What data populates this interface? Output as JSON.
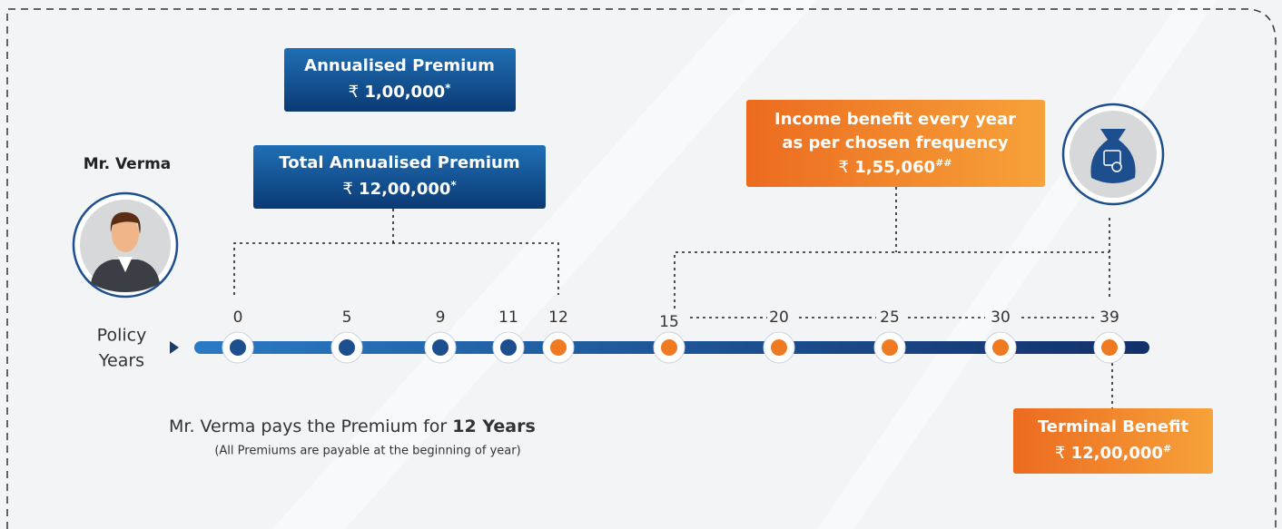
{
  "person": {
    "name": "Mr. Verma"
  },
  "axis_label": [
    "Policy",
    "Years"
  ],
  "annualised_premium": {
    "title": "Annualised Premium",
    "currency": "₹",
    "amount": "1,00,000",
    "mark": "*"
  },
  "total_premium": {
    "title": "Total Annualised Premium",
    "currency": "₹",
    "amount": "12,00,000",
    "mark": "*"
  },
  "income_benefit": {
    "lines": [
      "Income benefit every year",
      "as per chosen frequency"
    ],
    "currency": "₹",
    "amount": "1,55,060",
    "mark": "##"
  },
  "terminal_benefit": {
    "title": "Terminal Benefit",
    "currency": "₹",
    "amount": "12,00,000",
    "mark": "#"
  },
  "timeline": {
    "years": [
      0,
      5,
      9,
      11,
      12,
      15,
      20,
      25,
      30,
      39
    ],
    "dot_colors": [
      "#1d4f8e",
      "#1d4f8e",
      "#1d4f8e",
      "#1d4f8e",
      "#f07a22",
      "#f07a22",
      "#f07a22",
      "#f07a22",
      "#f07a22",
      "#f07a22"
    ]
  },
  "footer": {
    "text": "Mr. Verma pays the Premium for",
    "bold": "12 Years",
    "note": "(All Premiums are payable at the beginning of year)"
  }
}
